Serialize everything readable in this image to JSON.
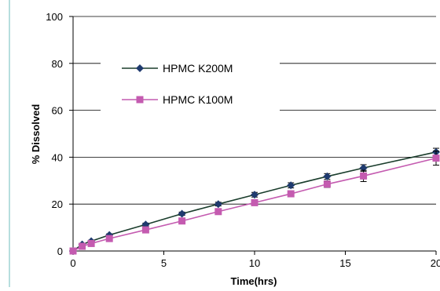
{
  "chart_data": {
    "type": "line",
    "xlabel": "Time(hrs)",
    "ylabel": "% Dissolved",
    "xlim": [
      0,
      20
    ],
    "ylim": [
      0,
      100
    ],
    "x_ticks": [
      "0",
      "5",
      "10",
      "15",
      "20"
    ],
    "y_ticks": [
      "0",
      "20",
      "40",
      "60",
      "80",
      "100"
    ],
    "grid": "horizontal",
    "legend_position": "upper-left",
    "series": [
      {
        "name": "HPMC K200M",
        "color": "#1f3a6e",
        "marker": "diamond",
        "x": [
          0,
          0.5,
          1,
          2,
          4,
          6,
          8,
          10,
          12,
          14,
          16,
          20
        ],
        "y": [
          0,
          2.8,
          4.2,
          6.8,
          11.3,
          15.9,
          20.0,
          24.0,
          28.0,
          31.8,
          35.4,
          42.2
        ],
        "error": [
          0,
          0.3,
          0.4,
          0.5,
          0.6,
          0.7,
          0.8,
          1.0,
          1.1,
          1.2,
          1.4,
          1.6
        ]
      },
      {
        "name": "HPMC K100M",
        "color": "#c45bb0",
        "marker": "square",
        "x": [
          0,
          0.5,
          1,
          2,
          4,
          6,
          8,
          10,
          12,
          14,
          16,
          20
        ],
        "y": [
          0,
          2.0,
          3.2,
          5.3,
          9.0,
          12.8,
          16.8,
          20.6,
          24.4,
          28.5,
          32.0,
          39.6
        ],
        "error": [
          0,
          0.3,
          0.3,
          0.4,
          0.5,
          0.6,
          0.8,
          1.0,
          1.2,
          1.4,
          2.4,
          3.0
        ]
      }
    ]
  }
}
